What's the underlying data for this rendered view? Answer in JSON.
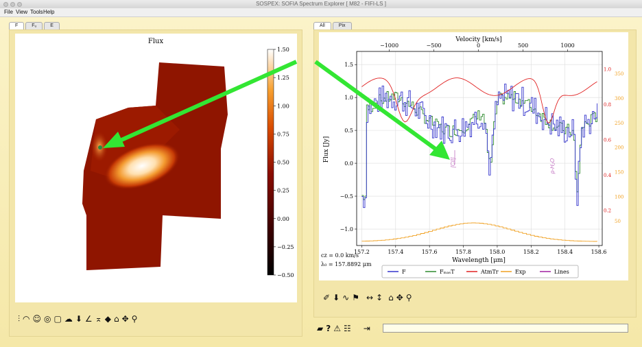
{
  "window": {
    "title": "SOSPEX: SOFIA Spectrum Explorer [ M82 - FIFI-LS ]"
  },
  "menu": [
    "File",
    "View",
    "Tools",
    "Help"
  ],
  "left_panel": {
    "tabs": [
      "F",
      "Fᵤ",
      "E"
    ],
    "active_tab": "F",
    "image_title": "Flux",
    "colorbar_ticks": [
      "1.50",
      "1.25",
      "1.00",
      "0.75",
      "0.50",
      "0.25",
      "0.00",
      "−0.25",
      "−0.50"
    ],
    "toolbar_icons": [
      "levels-icon",
      "fit-icon",
      "face-icon",
      "spiral-icon",
      "note-icon",
      "cloud-icon",
      "download-icon",
      "slice-icon",
      "crop-icon",
      "eraser-icon",
      "home-icon",
      "move-icon",
      "zoom-icon"
    ]
  },
  "right_panel": {
    "tabs": [
      "All",
      "Pix"
    ],
    "active_tab": "All",
    "top_axis_label": "Velocity [km/s]",
    "top_ticks": [
      "−1000",
      "−500",
      "0",
      "500",
      "1000"
    ],
    "left_axis_label": "Flux [Jy]",
    "left_ticks": [
      "1.5",
      "1.0",
      "0.5",
      "0.0",
      "−0.5",
      "−1.0"
    ],
    "x_axis_label": "Wavelength [μm]",
    "x_ticks": [
      "157.2",
      "157.4",
      "157.6",
      "157.8",
      "158.0",
      "158.2",
      "158.4",
      "158.6"
    ],
    "right_red_ticks": [
      "1.0",
      "0.8",
      "0.6",
      "0.4",
      "0.2"
    ],
    "right_orange_ticks": [
      "350",
      "300",
      "250",
      "200",
      "150",
      "100",
      "50"
    ],
    "line_labels": [
      "[CII]",
      "p-H₂O"
    ],
    "info_cz": "cz = 0.0 km/s",
    "info_lambda": "λ₀ = 157.8892 μm",
    "legend": [
      {
        "label": "F",
        "color": "#3333cc"
      },
      {
        "label": "FₘₐₛT",
        "color": "#2e8b2e"
      },
      {
        "label": "AtmTr",
        "color": "#e02020"
      },
      {
        "label": "Exp",
        "color": "#f0a020"
      },
      {
        "label": "Lines",
        "color": "#a020a0"
      }
    ],
    "toolbar_icons": [
      "pencil-icon",
      "download-icon",
      "fit-icon",
      "flag-icon",
      "hresize-icon",
      "vresize-icon",
      "home-icon",
      "move-icon",
      "zoom-icon"
    ]
  },
  "bottom_bar": {
    "icons": [
      "folder-icon",
      "help-icon",
      "warning-icon",
      "mask-icon",
      "exit-icon"
    ],
    "command_value": ""
  },
  "colors": {
    "background": "#f6ebb0",
    "arrow": "#33e633"
  }
}
